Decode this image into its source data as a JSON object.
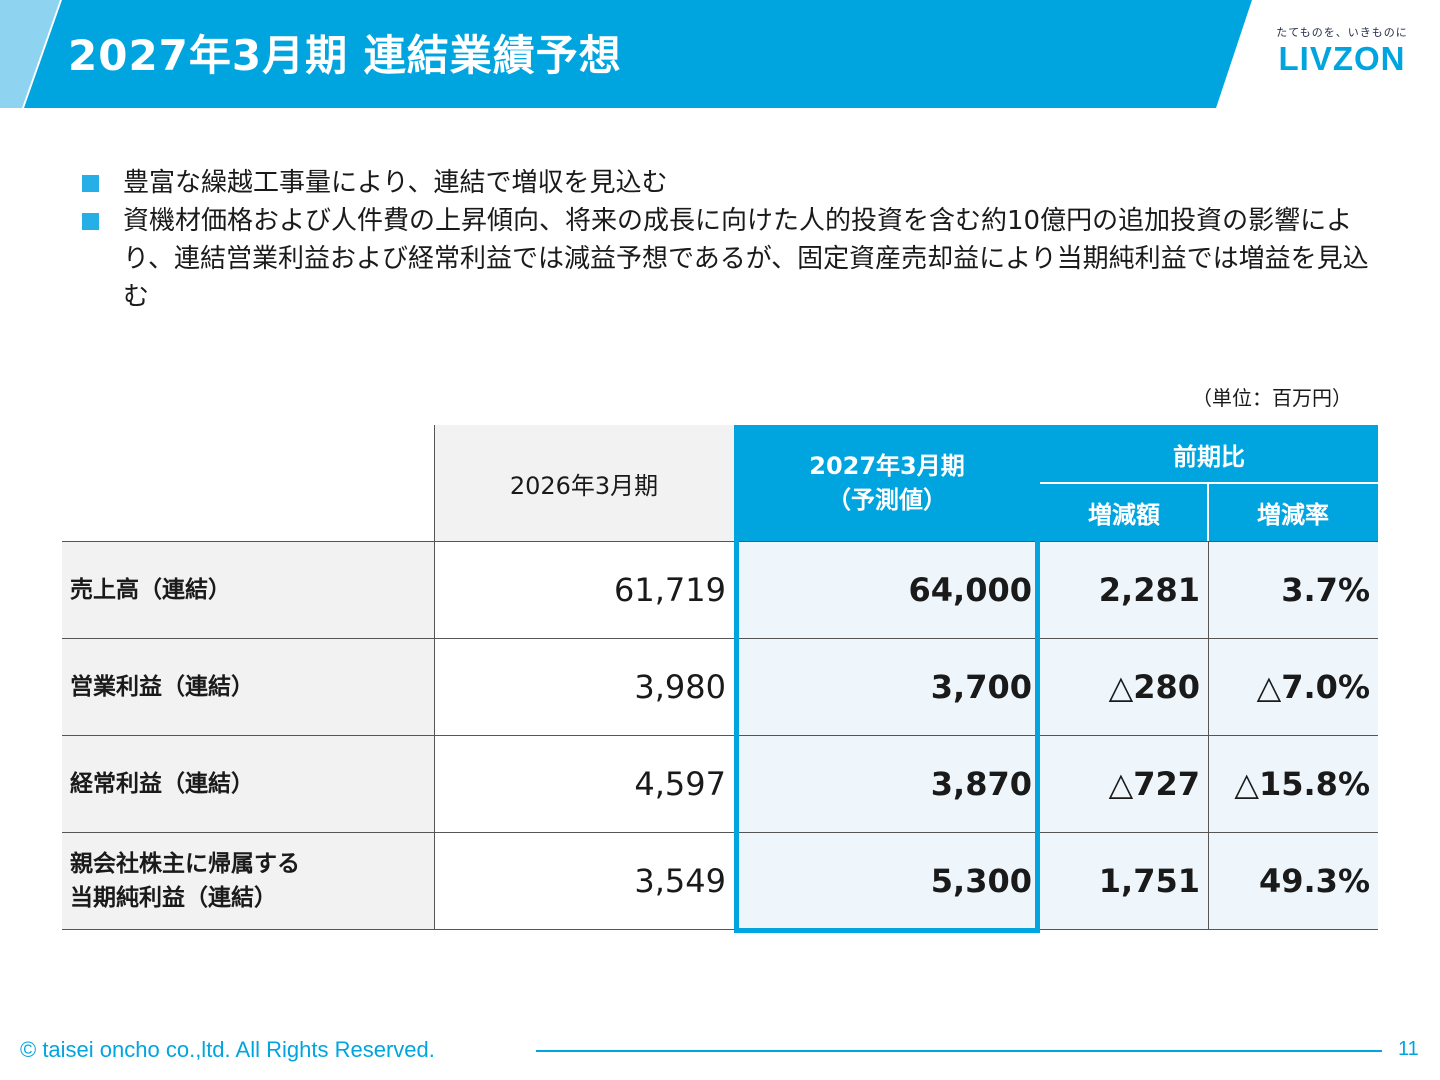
{
  "header": {
    "title": "2027年3月期 連結業績予想",
    "logo_tagline": "たてものを、いきものに",
    "logo_word": "LIVZON"
  },
  "bullets": [
    "豊富な繰越工事量により、連結で増収を見込む",
    "資機材価格および人件費の上昇傾向、将来の成長に向けた人的投資を含む約10億円の追加投資の影響により、連結営業利益および経常利益では減益予想であるが、固定資産売却益により当期純利益では増益を見込む"
  ],
  "unit": "（単位：百万円）",
  "table": {
    "col_prev": "2026年3月期",
    "col_forecast_line1": "2027年3月期",
    "col_forecast_line2": "（予測値）",
    "col_compare": "前期比",
    "col_diff": "増減額",
    "col_rate": "増減率",
    "rows": [
      {
        "label": "売上高（連結）",
        "label2": "",
        "prev": "61,719",
        "forecast": "64,000",
        "diff": "2,281",
        "rate": "3.7%"
      },
      {
        "label": "営業利益（連結）",
        "label2": "",
        "prev": "3,980",
        "forecast": "3,700",
        "diff": "△280",
        "rate": "△7.0%"
      },
      {
        "label": "経常利益（連結）",
        "label2": "",
        "prev": "4,597",
        "forecast": "3,870",
        "diff": "△727",
        "rate": "△15.8%"
      },
      {
        "label": "親会社株主に帰属する",
        "label2": "当期純利益（連結）",
        "prev": "3,549",
        "forecast": "5,300",
        "diff": "1,751",
        "rate": "49.3%"
      }
    ]
  },
  "footer": {
    "copyright": "© taisei oncho co.,ltd. All Rights Reserved.",
    "page": "11"
  },
  "colors": {
    "accent": "#00a5e0",
    "accent_light": "#8ed3f0",
    "pale": "#eef6fc",
    "gray": "#f2f2f2"
  }
}
